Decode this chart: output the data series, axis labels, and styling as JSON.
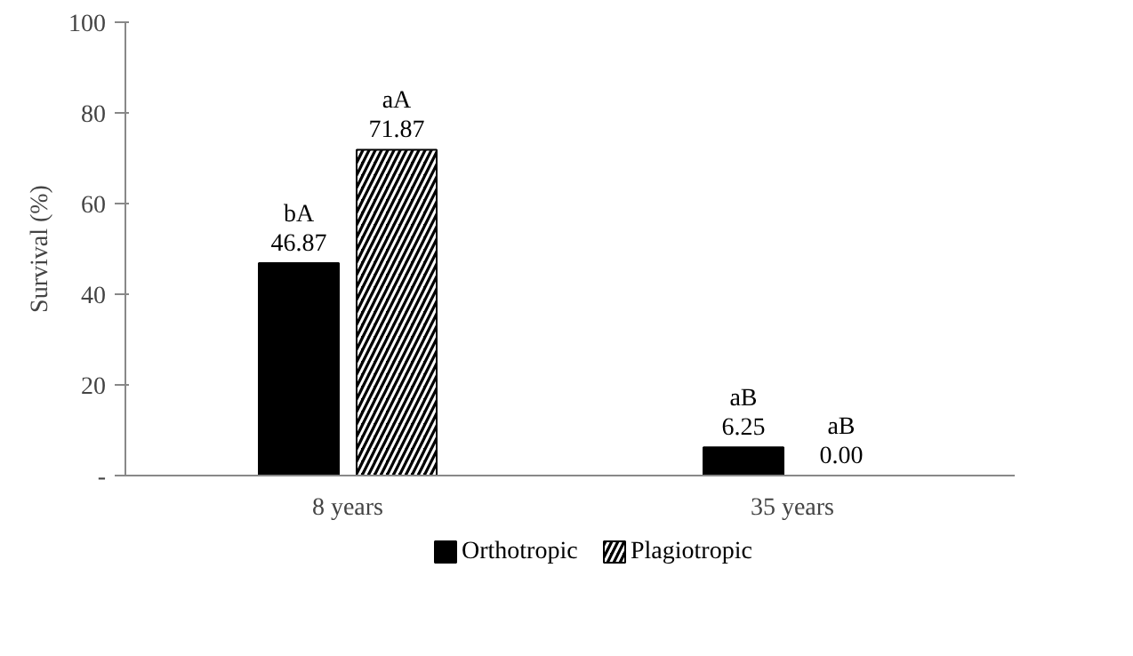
{
  "chart_data": {
    "type": "bar",
    "ylabel": "Survival (%)",
    "categories": [
      "8 years",
      "35 years"
    ],
    "series": [
      {
        "name": "Orthotropic",
        "color": "#000000",
        "values": [
          46.87,
          6.25
        ],
        "value_labels": [
          "bA\n46.87",
          "aB\n6.25"
        ]
      },
      {
        "name": "Plagiotropic",
        "color": "#000000",
        "values": [
          71.87,
          0.0
        ],
        "value_labels": [
          "aA\n71.87",
          "aB\n0.00"
        ]
      }
    ],
    "ylim": [
      0,
      100
    ],
    "yticks": [
      {
        "value": 0,
        "label": "-"
      },
      20,
      40,
      60,
      80,
      100
    ],
    "grid": false,
    "legend": "bottom"
  }
}
